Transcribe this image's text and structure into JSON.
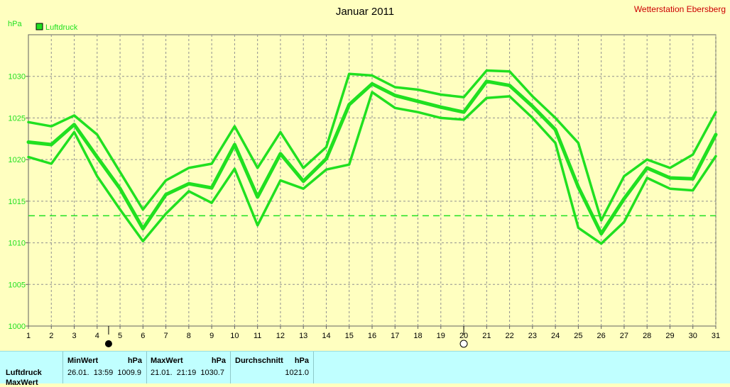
{
  "chart_data": {
    "type": "line",
    "title": "Januar 2011",
    "station": "Wetterstation Ebersberg",
    "ylabel": "hPa",
    "legend": [
      "Luftdruck"
    ],
    "legend_position": "top-left",
    "grid": true,
    "xlim": [
      1,
      31
    ],
    "ylim": [
      1000,
      1035
    ],
    "x_ticks": [
      1,
      2,
      3,
      4,
      5,
      6,
      7,
      8,
      9,
      10,
      11,
      12,
      13,
      14,
      15,
      16,
      17,
      18,
      19,
      20,
      21,
      22,
      23,
      24,
      25,
      26,
      27,
      28,
      29,
      30,
      31
    ],
    "y_ticks": [
      1000,
      1005,
      1010,
      1015,
      1020,
      1025,
      1030
    ],
    "x": [
      1,
      2,
      3,
      4,
      5,
      6,
      7,
      8,
      9,
      10,
      11,
      12,
      13,
      14,
      15,
      16,
      17,
      18,
      19,
      20,
      21,
      22,
      23,
      24,
      25,
      26,
      27,
      28,
      29,
      30,
      31
    ],
    "series": [
      {
        "name": "Luftdruck",
        "role": "max",
        "values": [
          1024.5,
          1024.0,
          1025.3,
          1023.0,
          1018.5,
          1014.0,
          1017.5,
          1019.0,
          1019.5,
          1024.0,
          1019.0,
          1023.3,
          1019.0,
          1021.5,
          1030.3,
          1030.1,
          1028.7,
          1028.4,
          1027.8,
          1027.5,
          1030.7,
          1030.6,
          1027.6,
          1025.0,
          1022.0,
          1012.7,
          1018.0,
          1020.0,
          1019.0,
          1020.6,
          1025.7
        ]
      },
      {
        "name": "Luftdruck",
        "role": "mean",
        "values": [
          1022.1,
          1021.8,
          1024.2,
          1020.3,
          1016.5,
          1011.7,
          1015.8,
          1017.1,
          1016.6,
          1021.8,
          1015.5,
          1020.7,
          1017.4,
          1020.1,
          1026.6,
          1029.1,
          1027.7,
          1027.0,
          1026.3,
          1025.7,
          1029.4,
          1028.9,
          1026.4,
          1023.6,
          1016.7,
          1011.1,
          1015.3,
          1019.0,
          1017.8,
          1017.7,
          1023.0
        ]
      },
      {
        "name": "Luftdruck",
        "role": "min",
        "values": [
          1020.3,
          1019.5,
          1023.3,
          1018.0,
          1014.0,
          1010.2,
          1013.5,
          1016.2,
          1014.8,
          1018.9,
          1012.1,
          1017.5,
          1016.5,
          1018.8,
          1019.4,
          1028.1,
          1026.2,
          1025.7,
          1025.0,
          1024.8,
          1027.4,
          1027.6,
          1025.0,
          1022.0,
          1011.8,
          1009.9,
          1012.5,
          1017.8,
          1016.5,
          1016.3,
          1020.4
        ]
      }
    ],
    "reference_line": {
      "value": 1013.25,
      "style": "dashed"
    },
    "markers": [
      {
        "x": 4.5,
        "symbol": "new-moon"
      },
      {
        "x": 20,
        "symbol": "full-moon"
      }
    ],
    "colors": {
      "background": "#ffffc0",
      "plot_area": "#ffffc0",
      "series": "#20e020",
      "reference": "#20e020",
      "grid": "#909090",
      "axis_text": "#20e020",
      "station": "#cc0000",
      "title": "#000000"
    }
  },
  "stats": {
    "row_label": "Luftdruck",
    "row_label_2": "MaxWert",
    "min_header": "MinWert",
    "max_header": "MaxWert",
    "avg_header": "Durchschnitt",
    "unit": "hPa",
    "min_value": "26.01.  13:59  1009.9",
    "max_value": "21.01.  21:19  1030.7",
    "avg_value": "1021.0",
    "panel_color": "#c0ffff"
  }
}
